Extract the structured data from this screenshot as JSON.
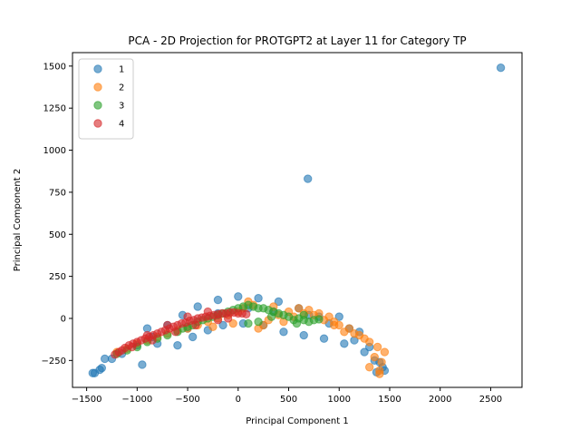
{
  "chart_data": {
    "type": "scatter",
    "title": "PCA - 2D Projection for PROTGPT2 at Layer 11 for Category TP",
    "xlabel": "Principal Component 1",
    "ylabel": "Principal Component 2",
    "xlim": [
      -1640,
      2810
    ],
    "ylim": [
      -410,
      1580
    ],
    "xticks": [
      -1500,
      -1000,
      -500,
      0,
      500,
      1000,
      1500,
      2000,
      2500
    ],
    "yticks": [
      -250,
      0,
      250,
      500,
      750,
      1000,
      1250,
      1500
    ],
    "xtick_labels": [
      "−1500",
      "−1000",
      "−500",
      "0",
      "500",
      "1000",
      "1500",
      "2000",
      "2500"
    ],
    "ytick_labels": [
      "−250",
      "0",
      "250",
      "500",
      "750",
      "1000",
      "1250",
      "1500"
    ],
    "grid": false,
    "legend_position": "top-left",
    "marker_alpha": 0.6,
    "series": [
      {
        "name": "1",
        "color": "#1f77b4",
        "points": [
          [
            2600,
            1490
          ],
          [
            690,
            830
          ],
          [
            -950,
            -275
          ],
          [
            -1420,
            -325
          ],
          [
            -1440,
            -325
          ],
          [
            -1350,
            -295
          ],
          [
            -1370,
            -305
          ],
          [
            -1320,
            -240
          ],
          [
            1450,
            -310
          ],
          [
            1430,
            -290
          ],
          [
            1400,
            -260
          ],
          [
            1300,
            -170
          ],
          [
            1200,
            -80
          ],
          [
            1100,
            -60
          ],
          [
            900,
            -30
          ],
          [
            800,
            10
          ],
          [
            600,
            60
          ],
          [
            400,
            100
          ],
          [
            200,
            120
          ],
          [
            0,
            130
          ],
          [
            -200,
            110
          ],
          [
            -400,
            70
          ],
          [
            -550,
            20
          ],
          [
            -700,
            -40
          ],
          [
            -850,
            -110
          ],
          [
            -1000,
            -160
          ],
          [
            -1150,
            -210
          ],
          [
            -1250,
            -240
          ],
          [
            -600,
            -160
          ],
          [
            -450,
            -110
          ],
          [
            -300,
            -70
          ],
          [
            -150,
            -40
          ],
          [
            50,
            -30
          ],
          [
            250,
            -40
          ],
          [
            450,
            -80
          ],
          [
            650,
            -100
          ],
          [
            850,
            -120
          ],
          [
            1050,
            -150
          ],
          [
            1250,
            -200
          ],
          [
            1350,
            -250
          ],
          [
            -200,
            30
          ],
          [
            100,
            60
          ],
          [
            350,
            40
          ],
          [
            700,
            20
          ],
          [
            1000,
            10
          ],
          [
            -900,
            -60
          ],
          [
            -500,
            -60
          ],
          [
            -800,
            -150
          ],
          [
            1150,
            -130
          ],
          [
            1370,
            -320
          ]
        ]
      },
      {
        "name": "2",
        "color": "#ff7f0e",
        "points": [
          [
            1400,
            -310
          ],
          [
            1420,
            -260
          ],
          [
            1450,
            -200
          ],
          [
            1380,
            -170
          ],
          [
            1300,
            -140
          ],
          [
            1200,
            -100
          ],
          [
            1100,
            -60
          ],
          [
            1000,
            -40
          ],
          [
            950,
            -20
          ],
          [
            900,
            10
          ],
          [
            800,
            30
          ],
          [
            700,
            50
          ],
          [
            600,
            60
          ],
          [
            500,
            40
          ],
          [
            400,
            20
          ],
          [
            300,
            -10
          ],
          [
            250,
            -40
          ],
          [
            200,
            -60
          ],
          [
            150,
            80
          ],
          [
            100,
            100
          ],
          [
            50,
            60
          ],
          [
            0,
            40
          ],
          [
            -100,
            20
          ],
          [
            -200,
            0
          ],
          [
            -300,
            -20
          ],
          [
            -400,
            -40
          ],
          [
            -500,
            -60
          ],
          [
            -600,
            -70
          ],
          [
            -700,
            -90
          ],
          [
            -800,
            -110
          ],
          [
            -900,
            -130
          ],
          [
            -1000,
            -150
          ],
          [
            -1100,
            -180
          ],
          [
            -1200,
            -200
          ],
          [
            1350,
            -230
          ],
          [
            1250,
            -120
          ],
          [
            1050,
            -80
          ],
          [
            850,
            -10
          ],
          [
            750,
            20
          ],
          [
            650,
            30
          ],
          [
            550,
            10
          ],
          [
            450,
            -20
          ],
          [
            350,
            70
          ],
          [
            1150,
            -90
          ],
          [
            1400,
            -330
          ],
          [
            -50,
            -30
          ],
          [
            -250,
            -50
          ],
          [
            950,
            -40
          ],
          [
            1300,
            -290
          ]
        ]
      },
      {
        "name": "3",
        "color": "#2ca02c",
        "points": [
          [
            500,
            10
          ],
          [
            550,
            -10
          ],
          [
            600,
            0
          ],
          [
            650,
            -10
          ],
          [
            700,
            -20
          ],
          [
            750,
            -10
          ],
          [
            800,
            -5
          ],
          [
            450,
            20
          ],
          [
            400,
            30
          ],
          [
            350,
            40
          ],
          [
            300,
            50
          ],
          [
            250,
            60
          ],
          [
            200,
            60
          ],
          [
            150,
            70
          ],
          [
            100,
            80
          ],
          [
            50,
            70
          ],
          [
            0,
            60
          ],
          [
            -50,
            50
          ],
          [
            -100,
            40
          ],
          [
            -150,
            30
          ],
          [
            -200,
            20
          ],
          [
            -250,
            10
          ],
          [
            -300,
            0
          ],
          [
            -350,
            -10
          ],
          [
            -400,
            -20
          ],
          [
            -450,
            -40
          ],
          [
            -500,
            -50
          ],
          [
            -550,
            -60
          ],
          [
            -600,
            -80
          ],
          [
            -700,
            -100
          ],
          [
            -800,
            -120
          ],
          [
            -900,
            -140
          ],
          [
            -1000,
            -170
          ],
          [
            -1100,
            -190
          ],
          [
            -1200,
            -210
          ],
          [
            200,
            -20
          ],
          [
            100,
            -30
          ],
          [
            650,
            20
          ],
          [
            580,
            -30
          ],
          [
            330,
            10
          ]
        ]
      },
      {
        "name": "4",
        "color": "#d62728",
        "points": [
          [
            -1220,
            -215
          ],
          [
            -1180,
            -200
          ],
          [
            -1150,
            -190
          ],
          [
            -1120,
            -175
          ],
          [
            -1080,
            -160
          ],
          [
            -1040,
            -150
          ],
          [
            -1000,
            -140
          ],
          [
            -960,
            -130
          ],
          [
            -920,
            -120
          ],
          [
            -880,
            -110
          ],
          [
            -840,
            -100
          ],
          [
            -800,
            -90
          ],
          [
            -760,
            -80
          ],
          [
            -720,
            -70
          ],
          [
            -680,
            -60
          ],
          [
            -640,
            -50
          ],
          [
            -600,
            -40
          ],
          [
            -560,
            -30
          ],
          [
            -520,
            -25
          ],
          [
            -480,
            -15
          ],
          [
            -440,
            -10
          ],
          [
            -400,
            0
          ],
          [
            -360,
            5
          ],
          [
            -320,
            10
          ],
          [
            -280,
            15
          ],
          [
            -240,
            20
          ],
          [
            -200,
            25
          ],
          [
            -160,
            30
          ],
          [
            -120,
            30
          ],
          [
            -80,
            35
          ],
          [
            -40,
            35
          ],
          [
            0,
            30
          ],
          [
            40,
            30
          ],
          [
            80,
            25
          ],
          [
            -500,
            10
          ],
          [
            -300,
            40
          ],
          [
            -700,
            -40
          ],
          [
            -900,
            -100
          ],
          [
            -1050,
            -170
          ],
          [
            -200,
            -10
          ],
          [
            -100,
            0
          ],
          [
            -420,
            -40
          ],
          [
            -620,
            -80
          ],
          [
            -850,
            -130
          ]
        ]
      }
    ]
  }
}
